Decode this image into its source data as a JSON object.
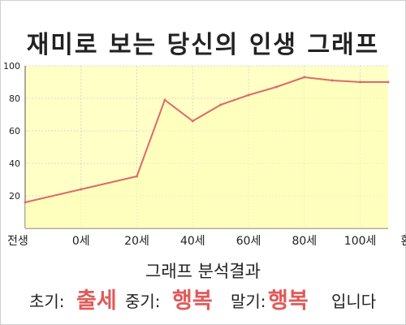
{
  "title": "재미로 보는 당신의 인생 그래프",
  "chart_data": {
    "type": "area",
    "x_categories": [
      "전생",
      "0세",
      "20세",
      "40세",
      "60세",
      "80세",
      "100세",
      "환생"
    ],
    "x": [
      -20,
      0,
      20,
      30,
      40,
      50,
      60,
      70,
      80,
      90,
      100,
      110
    ],
    "values": [
      16,
      24,
      32,
      79,
      66,
      76,
      82,
      87,
      93,
      91,
      90,
      90
    ],
    "y_ticks": [
      20,
      40,
      60,
      80,
      100
    ],
    "ylim": [
      0,
      100
    ],
    "grid": true,
    "colors": {
      "fill": "#ffffc6",
      "line": "#dd6a6a",
      "grid": "#d8d8d8"
    }
  },
  "analysis": {
    "title": "그래프 분석결과",
    "early_label": "초기:",
    "early_value": "출세",
    "middle_label": "중기:",
    "middle_value": "행복",
    "late_label": "말기:",
    "late_value": "행복",
    "ending": "입니다"
  }
}
